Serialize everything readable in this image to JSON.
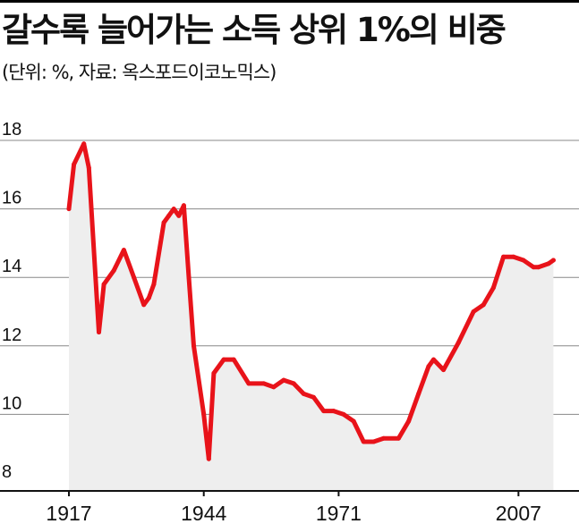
{
  "header": {
    "title": "갈수록 늘어가는 소득 상위 1%의 비중",
    "subtitle": "(단위: %, 자료: 옥스포드이코노믹스)"
  },
  "colors": {
    "line": "#e8131a",
    "area": "#eeeeee",
    "grid": "#888888",
    "axis": "#111111"
  },
  "chart_data": {
    "type": "area",
    "title": "갈수록 늘어가는 소득 상위 1%의 비중",
    "subtitle": "(단위: %, 자료: 옥스포드이코노믹스)",
    "xlabel": "",
    "ylabel": "",
    "xlim": [
      1917,
      2015
    ],
    "ylim": [
      8,
      18
    ],
    "x_ticks": [
      "1917",
      "1944",
      "1971",
      "2007"
    ],
    "y_ticks": [
      "8",
      "10",
      "12",
      "14",
      "16",
      "18"
    ],
    "grid": true,
    "series": [
      {
        "x": [
          1917,
          1918,
          1920,
          1921,
          1923,
          1924,
          1926,
          1928,
          1930,
          1932,
          1933,
          1934,
          1936,
          1937,
          1938,
          1939,
          1940,
          1941,
          1942,
          1944,
          1945,
          1946,
          1948,
          1950,
          1953,
          1956,
          1958,
          1960,
          1962,
          1964,
          1966,
          1968,
          1970,
          1972,
          1974,
          1976,
          1978,
          1980,
          1983,
          1985,
          1987,
          1989,
          1990,
          1992,
          1995,
          1998,
          2000,
          2002,
          2004,
          2006,
          2008,
          2010,
          2011,
          2013,
          2014
        ],
        "values": [
          16.0,
          17.3,
          17.9,
          17.2,
          12.4,
          13.8,
          14.2,
          14.8,
          14.0,
          13.2,
          13.4,
          13.8,
          15.6,
          15.8,
          16.0,
          15.8,
          16.1,
          14.0,
          12.0,
          10.0,
          8.7,
          11.2,
          11.6,
          11.6,
          10.9,
          10.9,
          10.8,
          11.0,
          10.9,
          10.6,
          10.5,
          10.1,
          10.1,
          10.0,
          9.8,
          9.2,
          9.2,
          9.3,
          9.3,
          9.8,
          10.6,
          11.4,
          11.6,
          11.3,
          12.1,
          13.0,
          13.2,
          13.7,
          14.6,
          14.6,
          14.5,
          14.3,
          14.3,
          14.4,
          14.5
        ]
      }
    ]
  }
}
